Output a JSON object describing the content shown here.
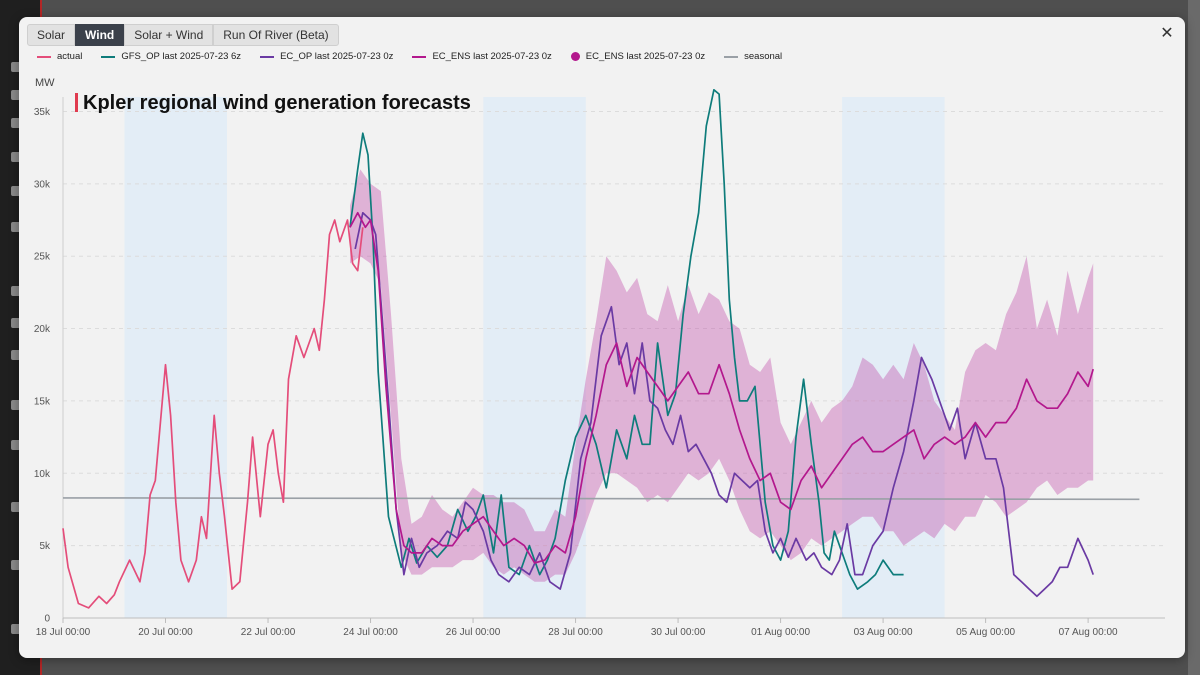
{
  "tabs": [
    {
      "label": "Solar",
      "active": false
    },
    {
      "label": "Wind",
      "active": true
    },
    {
      "label": "Solar + Wind",
      "active": false
    },
    {
      "label": "Run Of River (Beta)",
      "active": false
    }
  ],
  "close_icon": "close-icon",
  "chart_data": {
    "type": "line",
    "title": "Kpler regional wind generation forecasts",
    "ylabel": "MW",
    "ylim": [
      0,
      36000
    ],
    "yticks": [
      0,
      5000,
      10000,
      15000,
      20000,
      25000,
      30000,
      35000
    ],
    "ytick_labels": [
      "0",
      "5k",
      "10k",
      "15k",
      "20k",
      "25k",
      "30k",
      "35k"
    ],
    "xlim": [
      "2025-07-18 00:00",
      "2025-08-08 12:00"
    ],
    "xtick_labels": [
      "18 Jul 00:00",
      "20 Jul 00:00",
      "22 Jul 00:00",
      "24 Jul 00:00",
      "26 Jul 00:00",
      "28 Jul 00:00",
      "30 Jul 00:00",
      "01 Aug 00:00",
      "03 Aug 00:00",
      "05 Aug 00:00",
      "07 Aug 00:00"
    ],
    "xticks_days": [
      0,
      2,
      4,
      6,
      8,
      10,
      12,
      14,
      16,
      18,
      20
    ],
    "shaded_periods_days": [
      [
        1.2,
        3.2
      ],
      [
        8.2,
        10.2
      ],
      [
        15.2,
        17.2
      ]
    ],
    "grid": true,
    "legend_position": "top",
    "series": [
      {
        "name": "actual",
        "color": "#e44d7a",
        "x": [
          0,
          0.1,
          0.3,
          0.5,
          0.7,
          0.85,
          1,
          1.1,
          1.3,
          1.5,
          1.6,
          1.7,
          1.8,
          2,
          2.1,
          2.2,
          2.3,
          2.45,
          2.6,
          2.7,
          2.8,
          2.95,
          3.05,
          3.15,
          3.3,
          3.45,
          3.6,
          3.7,
          3.85,
          4,
          4.1,
          4.2,
          4.3,
          4.4,
          4.55,
          4.7,
          4.9,
          5,
          5.1,
          5.2,
          5.3,
          5.4,
          5.55,
          5.65,
          5.75,
          5.85
        ],
        "y": [
          6200,
          3500,
          1000,
          700,
          1500,
          1000,
          1600,
          2500,
          4000,
          2500,
          4500,
          8500,
          9500,
          17500,
          14000,
          8000,
          4000,
          2500,
          4000,
          7000,
          5500,
          14000,
          10000,
          7000,
          2000,
          2500,
          8000,
          12500,
          7000,
          12000,
          13000,
          10000,
          8000,
          16500,
          19500,
          18000,
          20000,
          18500,
          22000,
          26500,
          27500,
          26000,
          27500,
          24500,
          24000,
          27000
        ]
      },
      {
        "name": "GFS_OP last 2025-07-23 6z",
        "color": "#0e7c7b",
        "x": [
          5.6,
          5.75,
          5.85,
          5.95,
          6.05,
          6.15,
          6.35,
          6.6,
          6.75,
          6.9,
          7.1,
          7.3,
          7.5,
          7.7,
          7.9,
          8.05,
          8.2,
          8.4,
          8.55,
          8.7,
          8.9,
          9.1,
          9.3,
          9.45,
          9.6,
          9.8,
          10,
          10.2,
          10.4,
          10.6,
          10.8,
          11,
          11.15,
          11.3,
          11.45,
          11.6,
          11.8,
          11.95,
          12.1,
          12.25,
          12.4,
          12.55,
          12.7,
          12.8,
          12.9,
          13,
          13.1,
          13.2,
          13.35,
          13.5,
          13.7,
          13.85,
          14,
          14.15,
          14.3,
          14.45,
          14.6,
          14.75,
          14.85,
          14.95,
          15.05,
          15.2,
          15.35,
          15.5,
          15.7,
          15.85,
          16,
          16.2,
          16.4
        ],
        "y": [
          27000,
          31000,
          33500,
          32000,
          26000,
          17000,
          7000,
          3500,
          5500,
          3800,
          5000,
          4200,
          5000,
          7500,
          6000,
          7000,
          8500,
          4500,
          8500,
          3500,
          3000,
          5000,
          3000,
          4000,
          5500,
          9500,
          12500,
          14000,
          12000,
          9000,
          13000,
          11000,
          14000,
          12000,
          12000,
          19000,
          14000,
          15500,
          21000,
          25000,
          28000,
          34000,
          36500,
          36200,
          30000,
          22000,
          18000,
          15000,
          15000,
          16000,
          8000,
          5000,
          4000,
          6000,
          12500,
          16500,
          12000,
          8000,
          4500,
          4000,
          6000,
          4500,
          3000,
          2000,
          2500,
          3000,
          4000,
          3000,
          3000
        ]
      },
      {
        "name": "EC_OP last 2025-07-23 0z",
        "color": "#6a3aa3",
        "x": [
          5.7,
          5.85,
          6,
          6.1,
          6.2,
          6.35,
          6.5,
          6.65,
          6.8,
          6.95,
          7.1,
          7.3,
          7.5,
          7.7,
          7.85,
          8,
          8.2,
          8.35,
          8.5,
          8.7,
          8.9,
          9.1,
          9.3,
          9.5,
          9.7,
          9.9,
          10.1,
          10.3,
          10.5,
          10.7,
          10.85,
          11,
          11.15,
          11.3,
          11.45,
          11.6,
          11.75,
          11.9,
          12.05,
          12.2,
          12.35,
          12.5,
          12.65,
          12.8,
          12.95,
          13.1,
          13.25,
          13.4,
          13.55,
          13.7,
          13.85,
          14,
          14.15,
          14.3,
          14.5,
          14.65,
          14.8,
          15,
          15.15,
          15.3,
          15.45,
          15.6,
          15.8,
          16,
          16.2,
          16.4,
          16.6,
          16.75,
          16.95,
          17.1,
          17.3,
          17.45,
          17.6,
          17.8,
          18,
          18.2,
          18.35,
          18.55,
          18.7,
          18.85,
          19,
          19.15,
          19.3,
          19.45,
          19.6,
          19.8,
          20,
          20.1
        ],
        "y": [
          25500,
          28000,
          27500,
          26500,
          22000,
          15000,
          7500,
          3000,
          5500,
          3500,
          4500,
          5000,
          6000,
          5500,
          8000,
          7500,
          6000,
          4000,
          3000,
          2500,
          3500,
          3000,
          4500,
          2500,
          2000,
          4500,
          11000,
          13500,
          19500,
          21500,
          17500,
          19000,
          15500,
          19000,
          15000,
          14500,
          13000,
          12000,
          14000,
          11500,
          12000,
          11000,
          10000,
          8500,
          8000,
          10000,
          9500,
          9000,
          9500,
          6000,
          4500,
          5500,
          4200,
          5500,
          4000,
          4500,
          3500,
          3000,
          4000,
          6500,
          3000,
          3000,
          5000,
          6000,
          9000,
          11500,
          15000,
          18000,
          16500,
          15000,
          13000,
          14500,
          11000,
          13500,
          11000,
          11000,
          9000,
          3000,
          2500,
          2000,
          1500,
          2000,
          2500,
          3500,
          3500,
          5500,
          4000,
          3000
        ]
      },
      {
        "name": "EC_ENS last 2025-07-23 0z",
        "color": "#b3188d",
        "x": [
          5.6,
          5.75,
          5.9,
          6,
          6.15,
          6.3,
          6.5,
          6.65,
          6.8,
          7,
          7.2,
          7.4,
          7.6,
          7.8,
          8,
          8.2,
          8.4,
          8.6,
          8.8,
          9,
          9.2,
          9.4,
          9.6,
          9.8,
          10,
          10.2,
          10.4,
          10.6,
          10.8,
          11,
          11.2,
          11.4,
          11.6,
          11.8,
          12,
          12.2,
          12.4,
          12.6,
          12.8,
          13,
          13.2,
          13.4,
          13.6,
          13.8,
          14,
          14.2,
          14.4,
          14.6,
          14.8,
          15,
          15.2,
          15.4,
          15.6,
          15.8,
          16,
          16.2,
          16.4,
          16.6,
          16.8,
          17,
          17.2,
          17.4,
          17.6,
          17.8,
          18,
          18.2,
          18.4,
          18.6,
          18.8,
          19,
          19.2,
          19.4,
          19.6,
          19.8,
          20,
          20.1
        ],
        "y": [
          27000,
          28000,
          27000,
          27500,
          24000,
          16000,
          7500,
          5000,
          4500,
          4500,
          5500,
          5000,
          5000,
          6000,
          6500,
          7000,
          6000,
          5000,
          5500,
          5000,
          3800,
          4000,
          5000,
          4500,
          7000,
          11000,
          14000,
          17500,
          19000,
          16000,
          18000,
          17000,
          16000,
          15000,
          16000,
          17000,
          15500,
          15500,
          17500,
          15500,
          13000,
          11000,
          9500,
          10000,
          8000,
          7500,
          9500,
          10500,
          9000,
          10000,
          11000,
          12000,
          12500,
          11500,
          11500,
          12000,
          12500,
          13000,
          11000,
          12000,
          12500,
          12000,
          12500,
          13500,
          12500,
          13500,
          13500,
          14500,
          16500,
          15000,
          14500,
          14500,
          15500,
          17000,
          16000,
          17200
        ]
      },
      {
        "name": "EC_ENS last 2025-07-23 0z",
        "type": "band",
        "color": "#c14aa7",
        "x": [
          5.6,
          5.8,
          6,
          6.2,
          6.4,
          6.6,
          6.8,
          7,
          7.2,
          7.4,
          7.6,
          7.8,
          8,
          8.2,
          8.4,
          8.6,
          8.8,
          9,
          9.2,
          9.4,
          9.6,
          9.8,
          10,
          10.2,
          10.4,
          10.6,
          10.8,
          11,
          11.2,
          11.4,
          11.6,
          11.8,
          12,
          12.2,
          12.4,
          12.6,
          12.8,
          13,
          13.2,
          13.4,
          13.6,
          13.8,
          14,
          14.2,
          14.4,
          14.6,
          14.8,
          15,
          15.2,
          15.4,
          15.6,
          15.8,
          16,
          16.2,
          16.4,
          16.6,
          16.8,
          17,
          17.2,
          17.4,
          17.6,
          17.8,
          18,
          18.2,
          18.4,
          18.6,
          18.8,
          19,
          19.2,
          19.4,
          19.6,
          19.8,
          20,
          20.1
        ],
        "low": [
          24500,
          25000,
          24500,
          23000,
          14000,
          4500,
          3000,
          3000,
          3500,
          3500,
          3500,
          4000,
          4000,
          4500,
          3500,
          3000,
          3500,
          3000,
          2500,
          2500,
          3000,
          3000,
          4500,
          6500,
          8500,
          10000,
          10000,
          9500,
          9000,
          8000,
          8500,
          8000,
          9000,
          10000,
          9500,
          10000,
          11000,
          9500,
          7500,
          6000,
          5500,
          6000,
          5000,
          4000,
          4500,
          5500,
          5000,
          5500,
          6000,
          6500,
          7000,
          7000,
          6000,
          6000,
          5000,
          5500,
          6000,
          5500,
          6500,
          6000,
          7000,
          7000,
          8500,
          8000,
          7000,
          7500,
          8000,
          9000,
          9500,
          8500,
          9000,
          9000,
          9500,
          9500
        ],
        "high": [
          28500,
          31000,
          30000,
          29500,
          21000,
          11000,
          6500,
          7000,
          8500,
          7500,
          7000,
          8000,
          9000,
          8500,
          8500,
          8000,
          8000,
          7500,
          6000,
          6000,
          7500,
          7000,
          12000,
          16500,
          20500,
          25000,
          24000,
          22500,
          23500,
          21000,
          20500,
          23000,
          20500,
          23000,
          21000,
          22500,
          22000,
          20500,
          20000,
          17500,
          17000,
          18000,
          13500,
          12000,
          13500,
          15000,
          13500,
          14500,
          15000,
          16000,
          18000,
          17500,
          16500,
          17500,
          16500,
          19000,
          17500,
          15000,
          14000,
          13000,
          17000,
          18500,
          19000,
          18500,
          21000,
          22500,
          25000,
          20000,
          22000,
          19500,
          24000,
          21000,
          23500,
          24500
        ]
      },
      {
        "name": "seasonal",
        "color": "#9aa0a6",
        "x": [
          0,
          21
        ],
        "y": [
          8300,
          8200
        ]
      }
    ]
  }
}
